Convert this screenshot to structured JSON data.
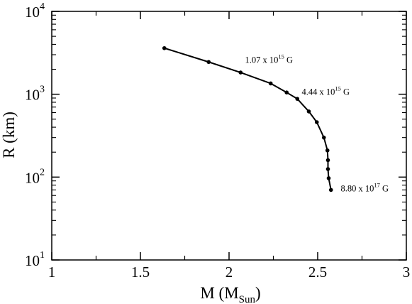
{
  "chart_data": {
    "type": "line",
    "title": "",
    "xlabel": {
      "main": "M (M",
      "sub": "Sun",
      "close": ")"
    },
    "ylabel": "R (km)",
    "xlim": [
      1,
      3
    ],
    "ylim": [
      10,
      10000
    ],
    "yscale": "log",
    "grid": false,
    "x_ticks": [
      "1",
      "1.5",
      "2",
      "2.5",
      "3"
    ],
    "y_ticks": [
      {
        "base": "10",
        "exp": "1"
      },
      {
        "base": "10",
        "exp": "2"
      },
      {
        "base": "10",
        "exp": "3"
      },
      {
        "base": "10",
        "exp": "4"
      }
    ],
    "series": [
      {
        "marker": "circle",
        "color": "#000000",
        "x": [
          1.635,
          1.885,
          2.065,
          2.235,
          2.325,
          2.385,
          2.45,
          2.495,
          2.535,
          2.555,
          2.558,
          2.558,
          2.562,
          2.575
        ],
        "y": [
          3600,
          2450,
          1830,
          1350,
          1050,
          880,
          620,
          460,
          300,
          210,
          160,
          125,
          97,
          70
        ]
      }
    ],
    "annotations": [
      {
        "base": "1.07 x 10",
        "exp": "15",
        "unit": " G",
        "x": 2.09,
        "y": 2400
      },
      {
        "base": "4.44 x 10",
        "exp": "15",
        "unit": " G",
        "x": 2.41,
        "y": 980
      },
      {
        "base": "8.80 x 10",
        "exp": "17",
        "unit": " G",
        "x": 2.63,
        "y": 67
      }
    ]
  }
}
